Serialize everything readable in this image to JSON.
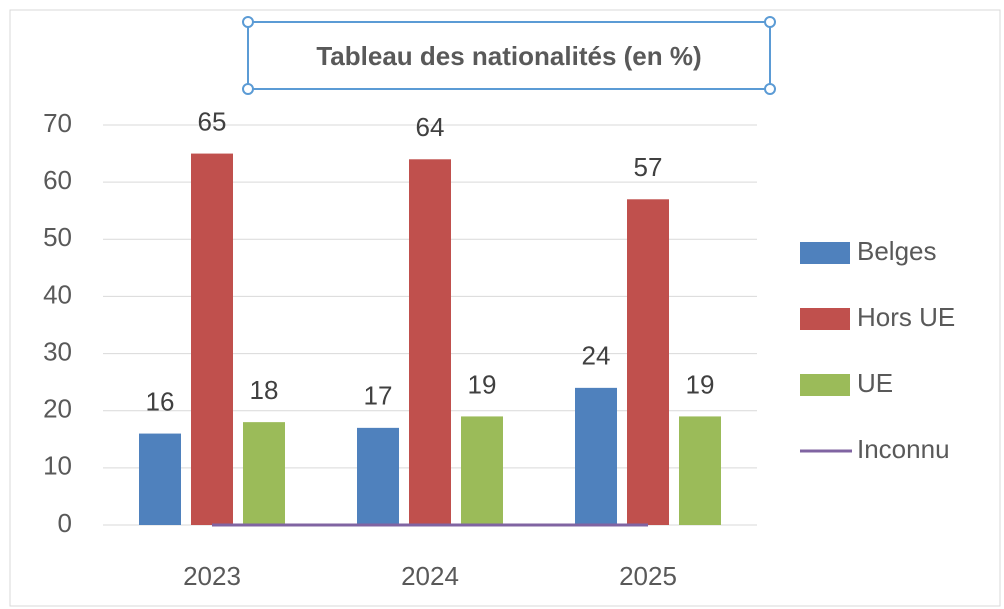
{
  "chart_data": {
    "type": "bar",
    "title": "Tableau des nationalités (en %)",
    "categories": [
      "2023",
      "2024",
      "2025"
    ],
    "series": [
      {
        "name": "Belges",
        "color": "#4f81bd",
        "values": [
          16,
          17,
          24
        ]
      },
      {
        "name": "Hors UE",
        "color": "#c0504d",
        "values": [
          65,
          64,
          57
        ]
      },
      {
        "name": "UE",
        "color": "#9bbb59",
        "values": [
          18,
          19,
          19
        ]
      },
      {
        "name": "Inconnu",
        "color": "#8064a2",
        "type": "line",
        "values": [
          0,
          0,
          0
        ]
      }
    ],
    "ylim": [
      0,
      70
    ],
    "yticks": [
      0,
      10,
      20,
      30,
      40,
      50,
      60,
      70
    ],
    "grid": true,
    "legend": "right"
  }
}
